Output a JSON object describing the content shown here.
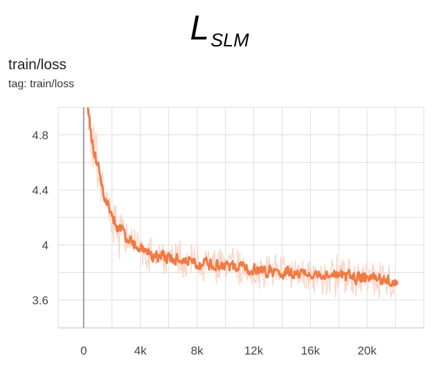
{
  "header": {
    "symbol": "L",
    "subscript": "SLM"
  },
  "card": {
    "title": "train/loss",
    "tag": "tag: train/loss"
  },
  "chart_data": {
    "type": "line",
    "title": "train/loss",
    "xlabel": "",
    "ylabel": "",
    "xlim": [
      -1800,
      24000
    ],
    "ylim": [
      3.395,
      5.0
    ],
    "x_ticks": [
      0,
      4000,
      8000,
      12000,
      16000,
      20000
    ],
    "x_tick_labels": [
      "0",
      "4k",
      "8k",
      "12k",
      "16k",
      "20k"
    ],
    "y_ticks": [
      3.6,
      4.0,
      4.4,
      4.8
    ],
    "y_tick_labels": [
      "3.6",
      "4",
      "4.4",
      "4.8"
    ],
    "grid": true,
    "colors": {
      "smoothed": "#f07a45",
      "raw": "#fbd6c6",
      "grid": "#dedede",
      "zero_line": "#9e9e9e"
    },
    "series": [
      {
        "role": "smoothed",
        "x": [
          300,
          500,
          750,
          1000,
          1250,
          1500,
          1750,
          2000,
          2250,
          2500,
          2750,
          3000,
          3250,
          3500,
          3750,
          4000,
          4250,
          4500,
          4750,
          5000,
          5250,
          5500,
          5750,
          6000,
          6250,
          6500,
          6750,
          7000,
          7250,
          7500,
          7750,
          8000,
          8250,
          8500,
          8750,
          9000,
          9250,
          9500,
          9750,
          10000,
          10250,
          10500,
          10750,
          11000,
          11250,
          11500,
          11750,
          12000,
          12250,
          12500,
          12750,
          13000,
          13250,
          13500,
          13750,
          14000,
          14250,
          14500,
          14750,
          15000,
          15250,
          15500,
          15750,
          16000,
          16250,
          16500,
          16750,
          17000,
          17250,
          17500,
          17750,
          18000,
          18250,
          18500,
          18750,
          19000,
          19250,
          19500,
          19750,
          20000,
          20250,
          20500,
          20750,
          21000,
          21250,
          21500,
          21750,
          21950
        ],
        "y": [
          5.0,
          4.78,
          4.66,
          4.56,
          4.44,
          4.33,
          4.27,
          4.2,
          4.16,
          4.12,
          4.09,
          4.05,
          4.03,
          4.01,
          3.99,
          3.97,
          3.96,
          3.95,
          3.94,
          3.93,
          3.92,
          3.92,
          3.91,
          3.91,
          3.9,
          3.9,
          3.89,
          3.89,
          3.88,
          3.88,
          3.87,
          3.87,
          3.86,
          3.86,
          3.86,
          3.85,
          3.85,
          3.85,
          3.84,
          3.84,
          3.84,
          3.84,
          3.83,
          3.83,
          3.83,
          3.83,
          3.82,
          3.82,
          3.82,
          3.82,
          3.81,
          3.81,
          3.81,
          3.81,
          3.8,
          3.8,
          3.8,
          3.8,
          3.8,
          3.79,
          3.79,
          3.79,
          3.79,
          3.79,
          3.78,
          3.78,
          3.78,
          3.78,
          3.78,
          3.78,
          3.77,
          3.77,
          3.77,
          3.77,
          3.77,
          3.77,
          3.76,
          3.76,
          3.76,
          3.76,
          3.76,
          3.76,
          3.75,
          3.75,
          3.75,
          3.75,
          3.72,
          3.7
        ]
      }
    ]
  }
}
